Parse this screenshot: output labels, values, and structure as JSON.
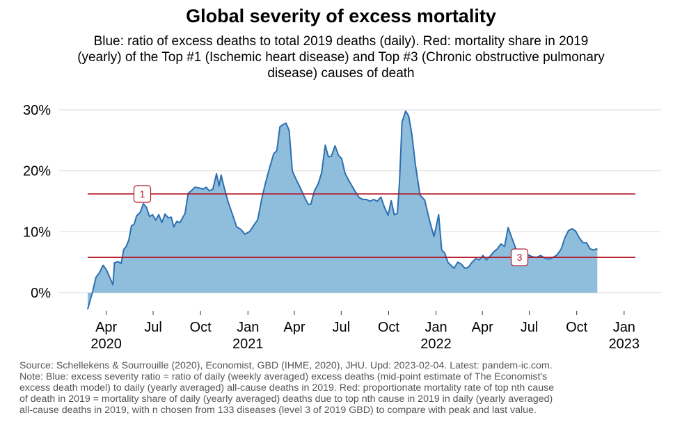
{
  "chart_data": {
    "type": "area",
    "title": "Global severity of excess mortality",
    "subtitle": [
      "Blue: ratio of excess deaths to total 2019 deaths (daily). Red: mortality share in 2019",
      "(yearly) of the Top #1 (Ischemic heart disease) and Top #3 (Chronic obstructive pulmonary",
      "disease) causes of death"
    ],
    "xlabel": "",
    "ylabel": "",
    "ylim": [
      -3,
      30
    ],
    "y_ticks": [
      {
        "value": 0,
        "label": "0%"
      },
      {
        "value": 10,
        "label": "10%"
      },
      {
        "value": 20,
        "label": "20%"
      },
      {
        "value": 30,
        "label": "30%"
      }
    ],
    "xlim": [
      "2020-02-25",
      "2023-02-04"
    ],
    "x_ticks": [
      {
        "date": "2020-04-01",
        "label": "Apr",
        "year": "2020"
      },
      {
        "date": "2020-07-01",
        "label": "Jul",
        "year": ""
      },
      {
        "date": "2020-10-01",
        "label": "Oct",
        "year": ""
      },
      {
        "date": "2021-01-01",
        "label": "Jan",
        "year": "2021"
      },
      {
        "date": "2021-04-01",
        "label": "Apr",
        "year": ""
      },
      {
        "date": "2021-07-01",
        "label": "Jul",
        "year": ""
      },
      {
        "date": "2021-10-01",
        "label": "Oct",
        "year": ""
      },
      {
        "date": "2022-01-01",
        "label": "Jan",
        "year": "2022"
      },
      {
        "date": "2022-04-01",
        "label": "Apr",
        "year": ""
      },
      {
        "date": "2022-07-01",
        "label": "Jul",
        "year": ""
      },
      {
        "date": "2022-10-01",
        "label": "Oct",
        "year": ""
      },
      {
        "date": "2023-01-01",
        "label": "Jan",
        "year": "2023"
      }
    ],
    "grid": "horizontal",
    "colors": {
      "series": "#2c6fb0",
      "fill": "#8fbedc",
      "reference": "#b2182b",
      "grid": "#d9d9d9"
    },
    "series": [
      {
        "values": [
          [
            "2020-02-25",
            -2.7
          ],
          [
            "2020-03-05",
            0.0
          ],
          [
            "2020-03-12",
            2.5
          ],
          [
            "2020-03-19",
            3.3
          ],
          [
            "2020-03-26",
            4.5
          ],
          [
            "2020-04-01",
            3.8
          ],
          [
            "2020-04-08",
            2.5
          ],
          [
            "2020-04-14",
            1.3
          ],
          [
            "2020-04-17",
            4.9
          ],
          [
            "2020-04-24",
            5.1
          ],
          [
            "2020-04-30",
            4.8
          ],
          [
            "2020-05-05",
            7.1
          ],
          [
            "2020-05-10",
            7.6
          ],
          [
            "2020-05-15",
            8.7
          ],
          [
            "2020-05-20",
            11.0
          ],
          [
            "2020-05-25",
            11.2
          ],
          [
            "2020-05-30",
            12.6
          ],
          [
            "2020-06-06",
            13.2
          ],
          [
            "2020-06-12",
            14.6
          ],
          [
            "2020-06-18",
            14.0
          ],
          [
            "2020-06-24",
            12.5
          ],
          [
            "2020-06-30",
            12.8
          ],
          [
            "2020-07-06",
            11.9
          ],
          [
            "2020-07-12",
            12.8
          ],
          [
            "2020-07-18",
            11.5
          ],
          [
            "2020-07-24",
            12.9
          ],
          [
            "2020-07-30",
            12.3
          ],
          [
            "2020-08-05",
            12.4
          ],
          [
            "2020-08-10",
            10.8
          ],
          [
            "2020-08-16",
            11.7
          ],
          [
            "2020-08-22",
            11.5
          ],
          [
            "2020-09-01",
            13.0
          ],
          [
            "2020-09-07",
            16.3
          ],
          [
            "2020-09-14",
            16.8
          ],
          [
            "2020-09-20",
            17.3
          ],
          [
            "2020-09-28",
            17.2
          ],
          [
            "2020-10-06",
            17.0
          ],
          [
            "2020-10-12",
            17.3
          ],
          [
            "2020-10-18",
            16.7
          ],
          [
            "2020-10-25",
            17.0
          ],
          [
            "2020-11-01",
            19.5
          ],
          [
            "2020-11-06",
            17.5
          ],
          [
            "2020-11-10",
            19.3
          ],
          [
            "2020-11-16",
            17.2
          ],
          [
            "2020-11-24",
            14.8
          ],
          [
            "2020-12-01",
            13.1
          ],
          [
            "2020-12-10",
            10.8
          ],
          [
            "2020-12-18",
            10.4
          ],
          [
            "2020-12-26",
            9.6
          ],
          [
            "2021-01-04",
            10.0
          ],
          [
            "2021-01-12",
            11.0
          ],
          [
            "2021-01-20",
            12.0
          ],
          [
            "2021-01-28",
            15.5
          ],
          [
            "2021-02-04",
            18.0
          ],
          [
            "2021-02-12",
            20.5
          ],
          [
            "2021-02-20",
            22.8
          ],
          [
            "2021-02-26",
            23.3
          ],
          [
            "2021-03-04",
            27.2
          ],
          [
            "2021-03-10",
            27.6
          ],
          [
            "2021-03-16",
            27.8
          ],
          [
            "2021-03-22",
            26.6
          ],
          [
            "2021-03-28",
            20.0
          ],
          [
            "2021-04-04",
            18.7
          ],
          [
            "2021-04-12",
            17.3
          ],
          [
            "2021-04-20",
            15.8
          ],
          [
            "2021-04-28",
            14.5
          ],
          [
            "2021-05-03",
            14.5
          ],
          [
            "2021-05-10",
            16.7
          ],
          [
            "2021-05-17",
            17.8
          ],
          [
            "2021-05-24",
            19.7
          ],
          [
            "2021-05-31",
            24.2
          ],
          [
            "2021-06-06",
            22.3
          ],
          [
            "2021-06-12",
            22.4
          ],
          [
            "2021-06-19",
            24.1
          ],
          [
            "2021-06-26",
            22.5
          ],
          [
            "2021-07-02",
            22.0
          ],
          [
            "2021-07-08",
            19.7
          ],
          [
            "2021-07-15",
            18.5
          ],
          [
            "2021-07-22",
            17.5
          ],
          [
            "2021-07-29",
            16.5
          ],
          [
            "2021-08-05",
            15.6
          ],
          [
            "2021-08-12",
            15.3
          ],
          [
            "2021-08-19",
            15.3
          ],
          [
            "2021-08-26",
            15.0
          ],
          [
            "2021-09-02",
            15.3
          ],
          [
            "2021-09-09",
            15.0
          ],
          [
            "2021-09-16",
            15.7
          ],
          [
            "2021-09-23",
            14.0
          ],
          [
            "2021-09-30",
            12.7
          ],
          [
            "2021-10-06",
            15.1
          ],
          [
            "2021-10-12",
            12.8
          ],
          [
            "2021-10-18",
            13.0
          ],
          [
            "2021-10-22",
            18.0
          ],
          [
            "2021-10-27",
            28.0
          ],
          [
            "2021-11-03",
            29.8
          ],
          [
            "2021-11-09",
            29.0
          ],
          [
            "2021-11-15",
            26.0
          ],
          [
            "2021-11-22",
            21.0
          ],
          [
            "2021-12-01",
            16.0
          ],
          [
            "2021-12-10",
            15.2
          ],
          [
            "2021-12-19",
            12.0
          ],
          [
            "2021-12-28",
            9.2
          ],
          [
            "2022-01-06",
            12.8
          ],
          [
            "2022-01-12",
            7.0
          ],
          [
            "2022-01-18",
            6.5
          ],
          [
            "2022-01-24",
            5.0
          ],
          [
            "2022-01-30",
            4.5
          ],
          [
            "2022-02-05",
            4.0
          ],
          [
            "2022-02-12",
            5.0
          ],
          [
            "2022-02-19",
            4.7
          ],
          [
            "2022-02-26",
            4.0
          ],
          [
            "2022-03-05",
            4.2
          ],
          [
            "2022-03-12",
            5.0
          ],
          [
            "2022-03-19",
            5.6
          ],
          [
            "2022-03-26",
            5.4
          ],
          [
            "2022-04-02",
            6.1
          ],
          [
            "2022-04-09",
            5.4
          ],
          [
            "2022-04-16",
            6.0
          ],
          [
            "2022-04-23",
            6.7
          ],
          [
            "2022-04-30",
            7.2
          ],
          [
            "2022-05-07",
            8.0
          ],
          [
            "2022-05-14",
            7.6
          ],
          [
            "2022-05-21",
            10.7
          ],
          [
            "2022-05-28",
            9.0
          ],
          [
            "2022-06-05",
            7.2
          ],
          [
            "2022-06-13",
            6.2
          ],
          [
            "2022-06-21",
            6.0
          ],
          [
            "2022-06-29",
            6.2
          ],
          [
            "2022-07-07",
            5.9
          ],
          [
            "2022-07-15",
            5.8
          ],
          [
            "2022-07-23",
            6.1
          ],
          [
            "2022-07-31",
            5.7
          ],
          [
            "2022-08-08",
            5.5
          ],
          [
            "2022-08-16",
            5.8
          ],
          [
            "2022-08-24",
            6.2
          ],
          [
            "2022-09-01",
            7.2
          ],
          [
            "2022-09-08",
            9.0
          ],
          [
            "2022-09-15",
            10.2
          ],
          [
            "2022-09-22",
            10.5
          ],
          [
            "2022-09-29",
            10.1
          ],
          [
            "2022-10-06",
            9.0
          ],
          [
            "2022-10-13",
            8.2
          ],
          [
            "2022-10-20",
            8.2
          ],
          [
            "2022-10-27",
            7.2
          ],
          [
            "2022-11-03",
            7.0
          ],
          [
            "2022-11-08",
            7.2
          ],
          [
            "2022-11-10",
            7.1
          ]
        ]
      }
    ],
    "reference_lines": [
      {
        "label": "1",
        "value": 16.2,
        "label_date": "2020-06-10"
      },
      {
        "label": "3",
        "value": 5.8,
        "label_date": "2022-06-12"
      }
    ]
  },
  "footer": [
    "Source: Schellekens & Sourrouille (2020), Economist, GBD (IHME, 2020), JHU. Upd: 2023-02-04. Latest: pandem-ic.com.",
    "Note: Blue: excess severity ratio = ratio of daily (weekly averaged) excess deaths (mid-point estimate of The Economist's",
    "excess death model) to daily (yearly averaged) all-cause deaths in 2019. Red: proportionate mortality rate of top nth cause",
    "of death in 2019 = mortality share of daily (yearly averaged) deaths due to top nth cause in 2019 in daily (yearly averaged)",
    "all-cause deaths in 2019, with n chosen from 133 diseases (level 3 of 2019 GBD) to compare with peak and last value."
  ]
}
